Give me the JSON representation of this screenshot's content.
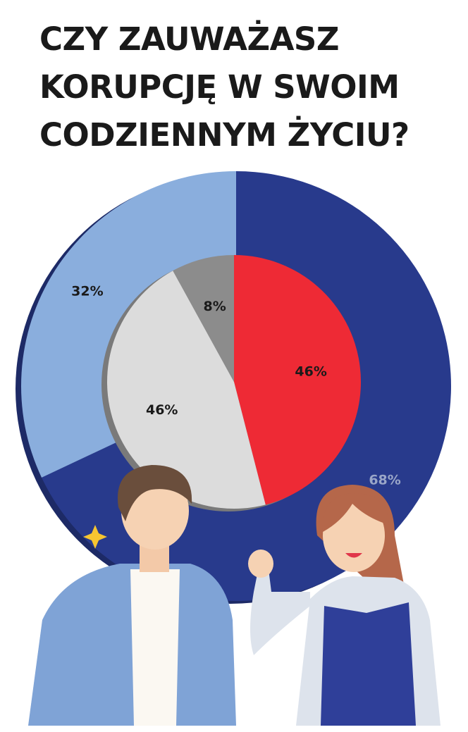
{
  "chart_data": [
    {
      "type": "donut",
      "title": "CZY ZAUWAŻASZ KORUPCJĘ W SWOIM CODZIENNYM ŻYCIU?",
      "values": [
        68,
        32
      ],
      "value_labels": [
        "68%",
        "32%"
      ],
      "colors": [
        "#283a8c",
        "#8aaedd"
      ]
    },
    {
      "type": "pie",
      "values": [
        46,
        46,
        8
      ],
      "value_labels": [
        "46%",
        "46%",
        "8%"
      ],
      "colors": [
        "#ee2a35",
        "#dcdcdc",
        "#8c8c8c"
      ]
    }
  ]
}
